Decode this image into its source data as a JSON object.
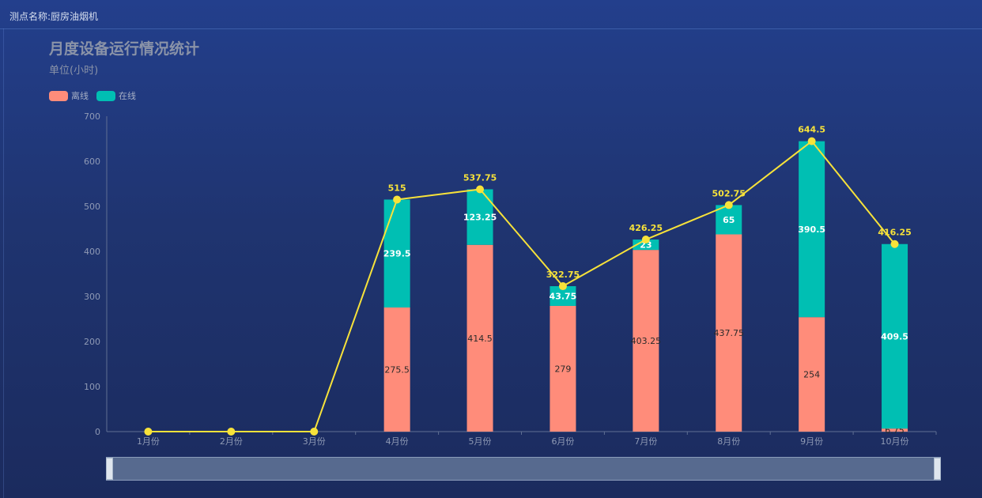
{
  "header": {
    "point_name_label": "测点名称:厨房油烟机"
  },
  "chart_data": {
    "type": "bar",
    "title": "月度设备运行情况统计",
    "subtitle": "单位(小时)",
    "categories": [
      "1月份",
      "2月份",
      "3月份",
      "4月份",
      "5月份",
      "6月份",
      "7月份",
      "8月份",
      "9月份",
      "10月份"
    ],
    "series": [
      {
        "name": "离线",
        "kind": "bar",
        "stack": "total",
        "color": "#ff8c7a",
        "label_color": "#2a2a2a",
        "values": [
          0,
          0,
          0,
          275.5,
          414.5,
          279,
          403.25,
          437.75,
          254,
          6.75
        ]
      },
      {
        "name": "在线",
        "kind": "bar",
        "stack": "total",
        "color": "#00bfb3",
        "label_color": "#ffffff",
        "values": [
          0,
          0,
          0,
          239.5,
          123.25,
          43.75,
          23,
          65,
          390.5,
          409.5
        ]
      },
      {
        "kind": "line",
        "color": "#f7e23a",
        "values": [
          0,
          0,
          0,
          515,
          537.75,
          322.75,
          426.25,
          502.75,
          644.5,
          416.25
        ]
      }
    ],
    "ylim": [
      0,
      700
    ],
    "yticks": [
      0,
      100,
      200,
      300,
      400,
      500,
      600,
      700
    ],
    "xlabel": "",
    "ylabel": "",
    "legend_position": "top-left",
    "grid": false,
    "data_zoom": {
      "start_percent": 0,
      "end_percent": 100
    }
  }
}
